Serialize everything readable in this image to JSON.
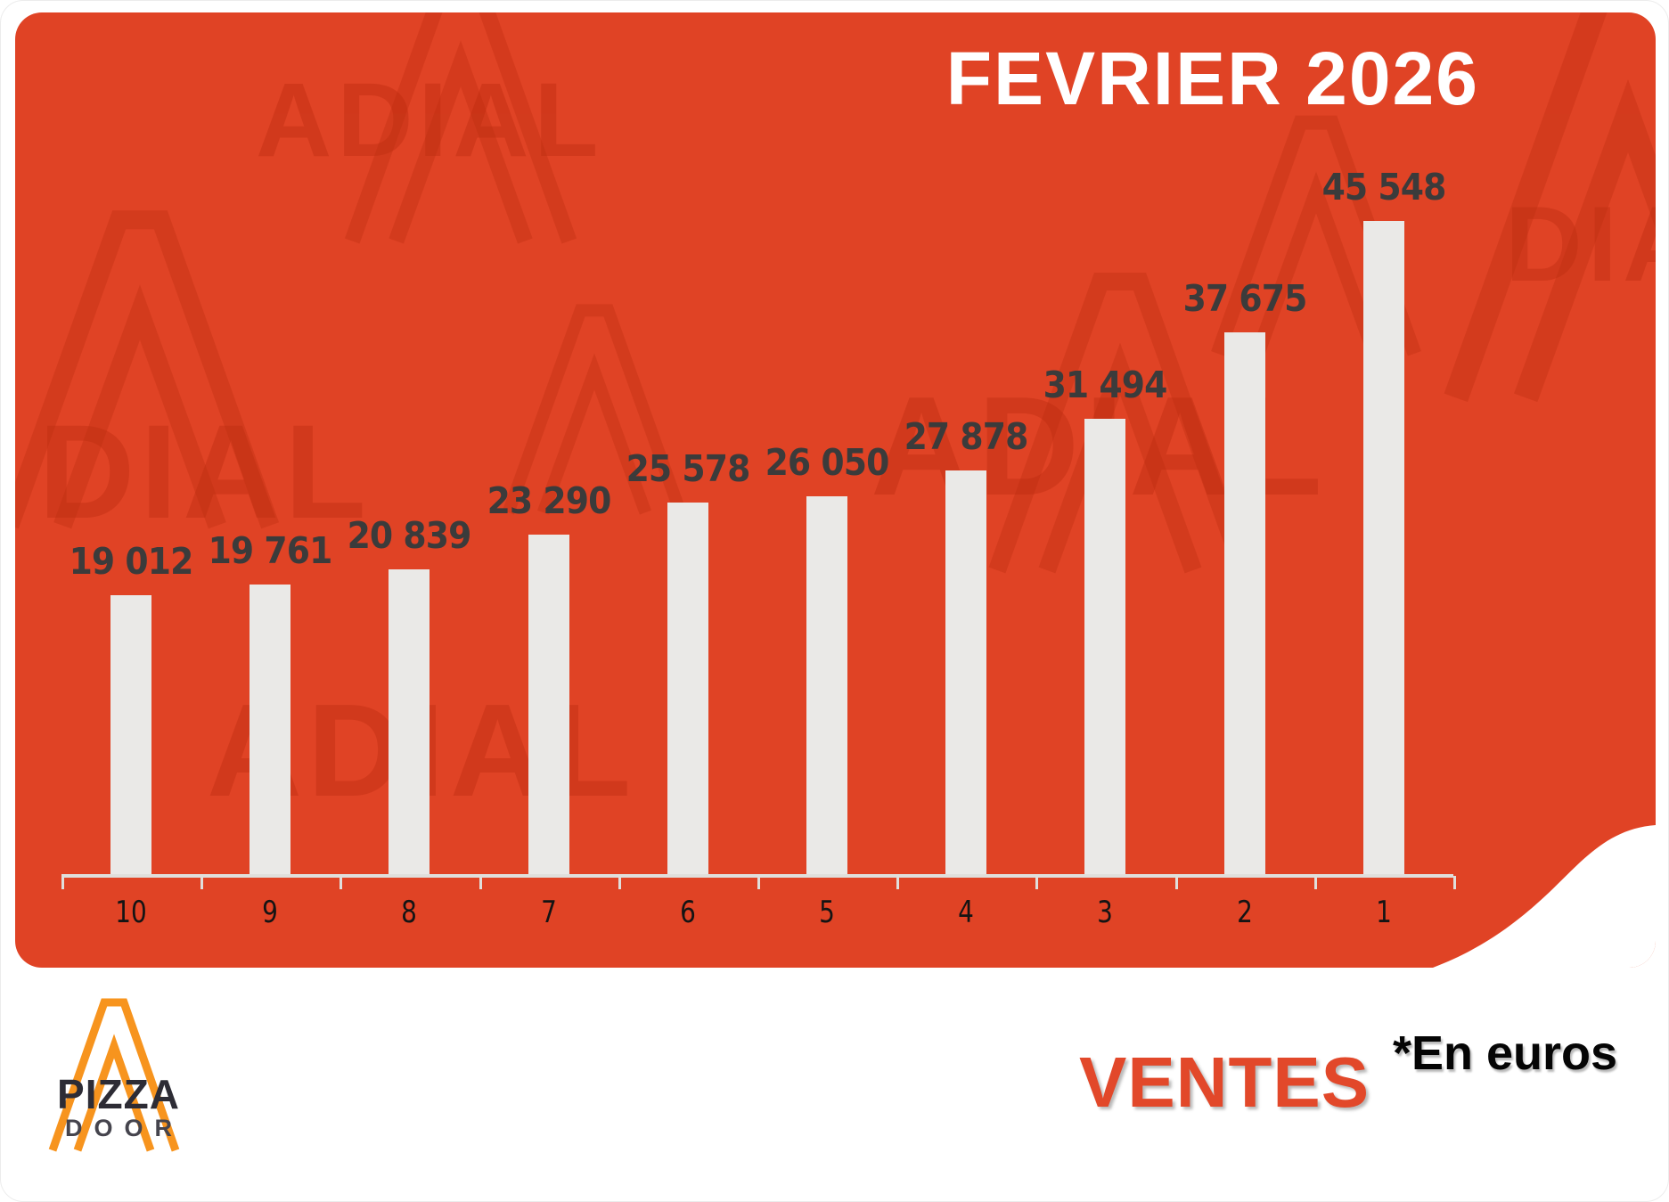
{
  "header": {
    "title": "FEVRIER 2026"
  },
  "chart_data": {
    "type": "bar",
    "title": "FEVRIER 2026",
    "categories": [
      "10",
      "9",
      "8",
      "7",
      "6",
      "5",
      "4",
      "3",
      "2",
      "1"
    ],
    "values": [
      19012,
      19761,
      20839,
      23290,
      25578,
      26050,
      27878,
      31494,
      37675,
      45548
    ],
    "value_labels": [
      "19 012",
      "19 761",
      "20 839",
      "23 290",
      "25 578",
      "26 050",
      "27 878",
      "31 494",
      "37 675",
      "45 548"
    ],
    "xlabel": "",
    "ylabel": "",
    "unit": "euros",
    "ylim": [
      0,
      48000
    ],
    "grid": false,
    "legend_position": "none",
    "bar_color": "#EAE9E7",
    "value_label_color": "#3B3B3B",
    "background_color": "#E04325"
  },
  "footer": {
    "series_title": "VENTES",
    "unit_note": "*En euros"
  },
  "logo": {
    "line1": "PIZZA",
    "line2": "DOOR",
    "accent_color": "#F7941E"
  },
  "watermark": {
    "text": "ADIAL",
    "text_partial": "DIAL"
  },
  "colors": {
    "panel_orange": "#E04325",
    "watermark_red": "#BD2D10",
    "title_white": "#FFFFFF",
    "footer_title_orange": "#E2482A",
    "axis_line_gray": "#E0DFDC"
  }
}
